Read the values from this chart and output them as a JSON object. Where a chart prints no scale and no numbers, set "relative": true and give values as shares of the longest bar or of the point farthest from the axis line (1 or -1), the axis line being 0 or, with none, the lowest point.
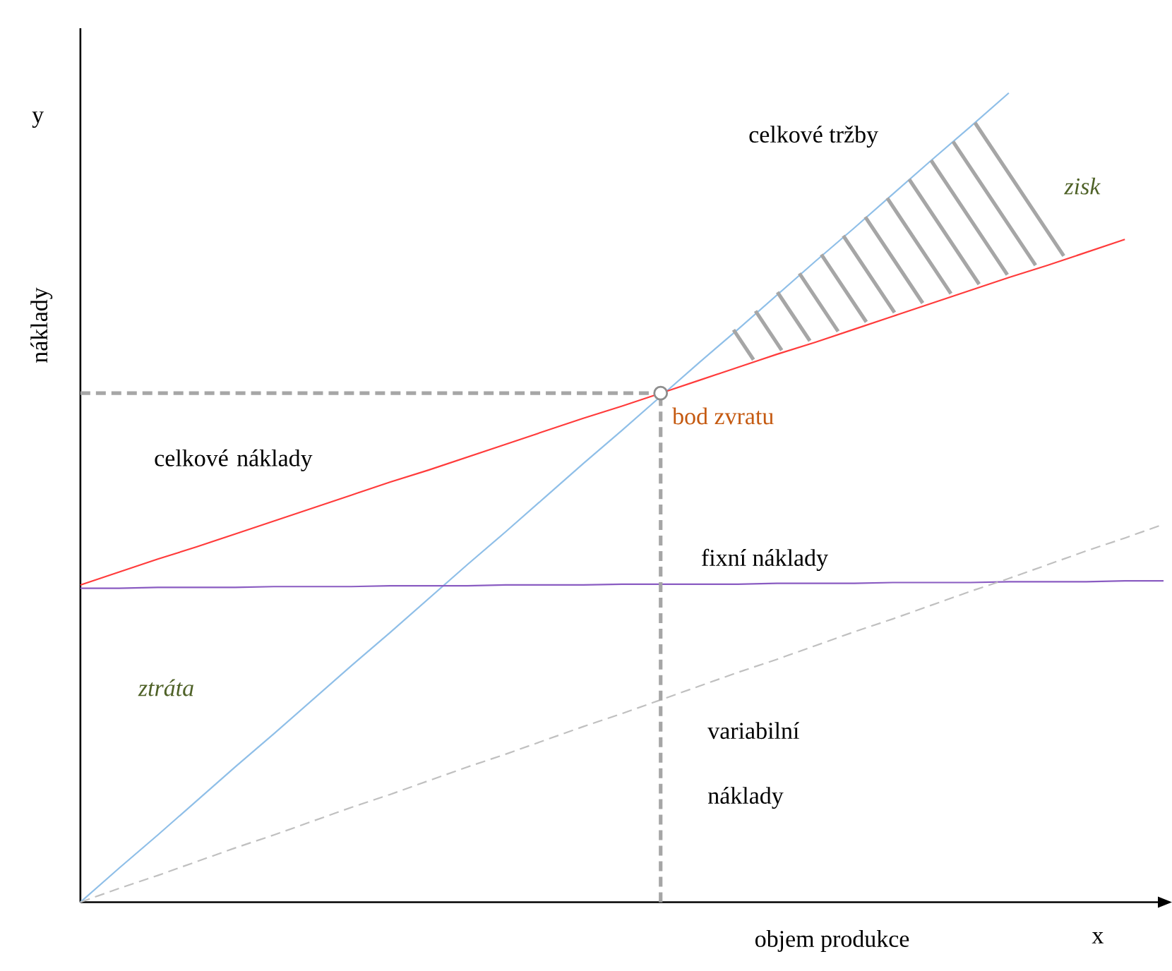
{
  "chart_data": {
    "type": "line",
    "relative": true,
    "xlabel": "objem produkce",
    "ylabel": "náklady",
    "categories": [
      null,
      null,
      null,
      null,
      null,
      null,
      null,
      null,
      null,
      null,
      null,
      null,
      null,
      null,
      null,
      null,
      null,
      null,
      null,
      null,
      null,
      null,
      null,
      null,
      null,
      null,
      null,
      null,
      null
    ],
    "series": [
      {
        "name": "celkové tržby",
        "color": "#8fbfe8",
        "values": [
          0,
          0.042,
          0.083,
          0.125,
          0.167,
          0.208,
          0.25,
          0.292,
          0.333,
          0.375,
          0.417,
          0.458,
          0.5,
          0.542,
          0.583,
          0.625,
          0.667,
          0.708,
          0.75,
          0.792,
          0.833,
          0.875,
          0.917,
          0.958,
          1,
          null,
          null,
          null,
          null
        ]
      },
      {
        "name": "celkové náklady",
        "color": "#ff3b3b",
        "values": [
          0.392,
          0.408,
          0.424,
          0.439,
          0.455,
          0.471,
          0.487,
          0.503,
          0.519,
          0.534,
          0.55,
          0.566,
          0.582,
          0.598,
          0.613,
          0.629,
          0.645,
          0.661,
          0.677,
          0.692,
          0.708,
          0.724,
          0.74,
          0.756,
          0.772,
          0.787,
          0.803,
          0.819,
          null
        ]
      },
      {
        "name": "fixní náklady",
        "color": "#8a5cc2",
        "values": [
          0.388,
          0.388,
          0.389,
          0.389,
          0.389,
          0.39,
          0.39,
          0.39,
          0.391,
          0.391,
          0.391,
          0.392,
          0.392,
          0.392,
          0.393,
          0.393,
          0.393,
          0.393,
          0.394,
          0.394,
          0.394,
          0.395,
          0.395,
          0.395,
          0.396,
          0.396,
          0.396,
          0.397,
          0.397
        ]
      },
      {
        "name": "variabilní náklady",
        "color": "#c0c0c0",
        "line_style": "dashed",
        "values": [
          0,
          0.017,
          0.033,
          0.05,
          0.067,
          0.083,
          0.1,
          0.117,
          0.133,
          0.15,
          0.167,
          0.183,
          0.2,
          0.217,
          0.233,
          0.25,
          0.267,
          0.284,
          0.3,
          0.317,
          0.334,
          0.35,
          0.367,
          0.384,
          0.4,
          0.417,
          0.434,
          0.45,
          0.467
        ]
      },
      {
        "color": "#a6a6a6",
        "line_style": "dashed",
        "values": [
          0.629,
          0.629,
          0.629,
          0.629,
          0.629,
          0.629,
          0.629,
          0.629,
          0.629,
          0.629,
          0.629,
          0.629,
          0.629,
          0.629,
          0.629,
          0.629,
          null,
          null,
          null,
          null,
          null,
          null,
          null,
          null,
          null,
          null,
          null,
          null,
          null
        ]
      }
    ],
    "annotations": [
      "bod zvratu",
      "zisk",
      "ztráta",
      "y",
      "x"
    ]
  }
}
